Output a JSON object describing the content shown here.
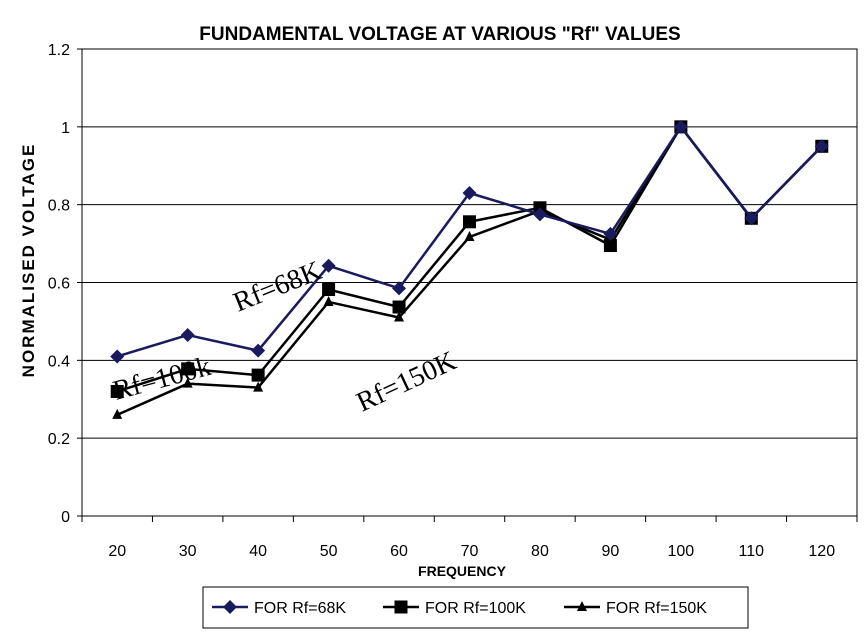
{
  "chart_data": {
    "type": "line",
    "title": "FUNDAMENTAL VOLTAGE AT VARIOUS \"Rf\" VALUES",
    "xlabel": "FREQUENCY",
    "ylabel": "NORMALISED VOLTAGE",
    "categories": [
      "20",
      "30",
      "40",
      "50",
      "60",
      "70",
      "80",
      "90",
      "100",
      "110",
      "120"
    ],
    "ylim": [
      0,
      1.2
    ],
    "yticks": [
      "0",
      "0.2",
      "0.4",
      "0.6",
      "0.8",
      "1",
      "1.2"
    ],
    "grid": true,
    "legend_position": "bottom",
    "series": [
      {
        "name": "FOR Rf=68K",
        "marker": "diamond",
        "color": "#1a1a5e",
        "values": [
          0.41,
          0.465,
          0.425,
          0.643,
          0.585,
          0.83,
          0.775,
          0.725,
          1.0,
          0.765,
          0.95
        ]
      },
      {
        "name": "FOR Rf=100K",
        "marker": "square",
        "color": "#000000",
        "values": [
          0.32,
          0.378,
          0.362,
          0.582,
          0.537,
          0.756,
          0.792,
          0.695,
          1.0,
          0.765,
          0.95
        ]
      },
      {
        "name": "FOR Rf=150K",
        "marker": "triangle",
        "color": "#000000",
        "values": [
          0.26,
          0.34,
          0.33,
          0.55,
          0.51,
          0.717,
          0.784,
          0.71,
          1.0,
          0.765,
          0.95
        ]
      }
    ],
    "annotations": [
      "Rf=68K",
      "Rf=100k",
      "Rf=150K"
    ]
  }
}
